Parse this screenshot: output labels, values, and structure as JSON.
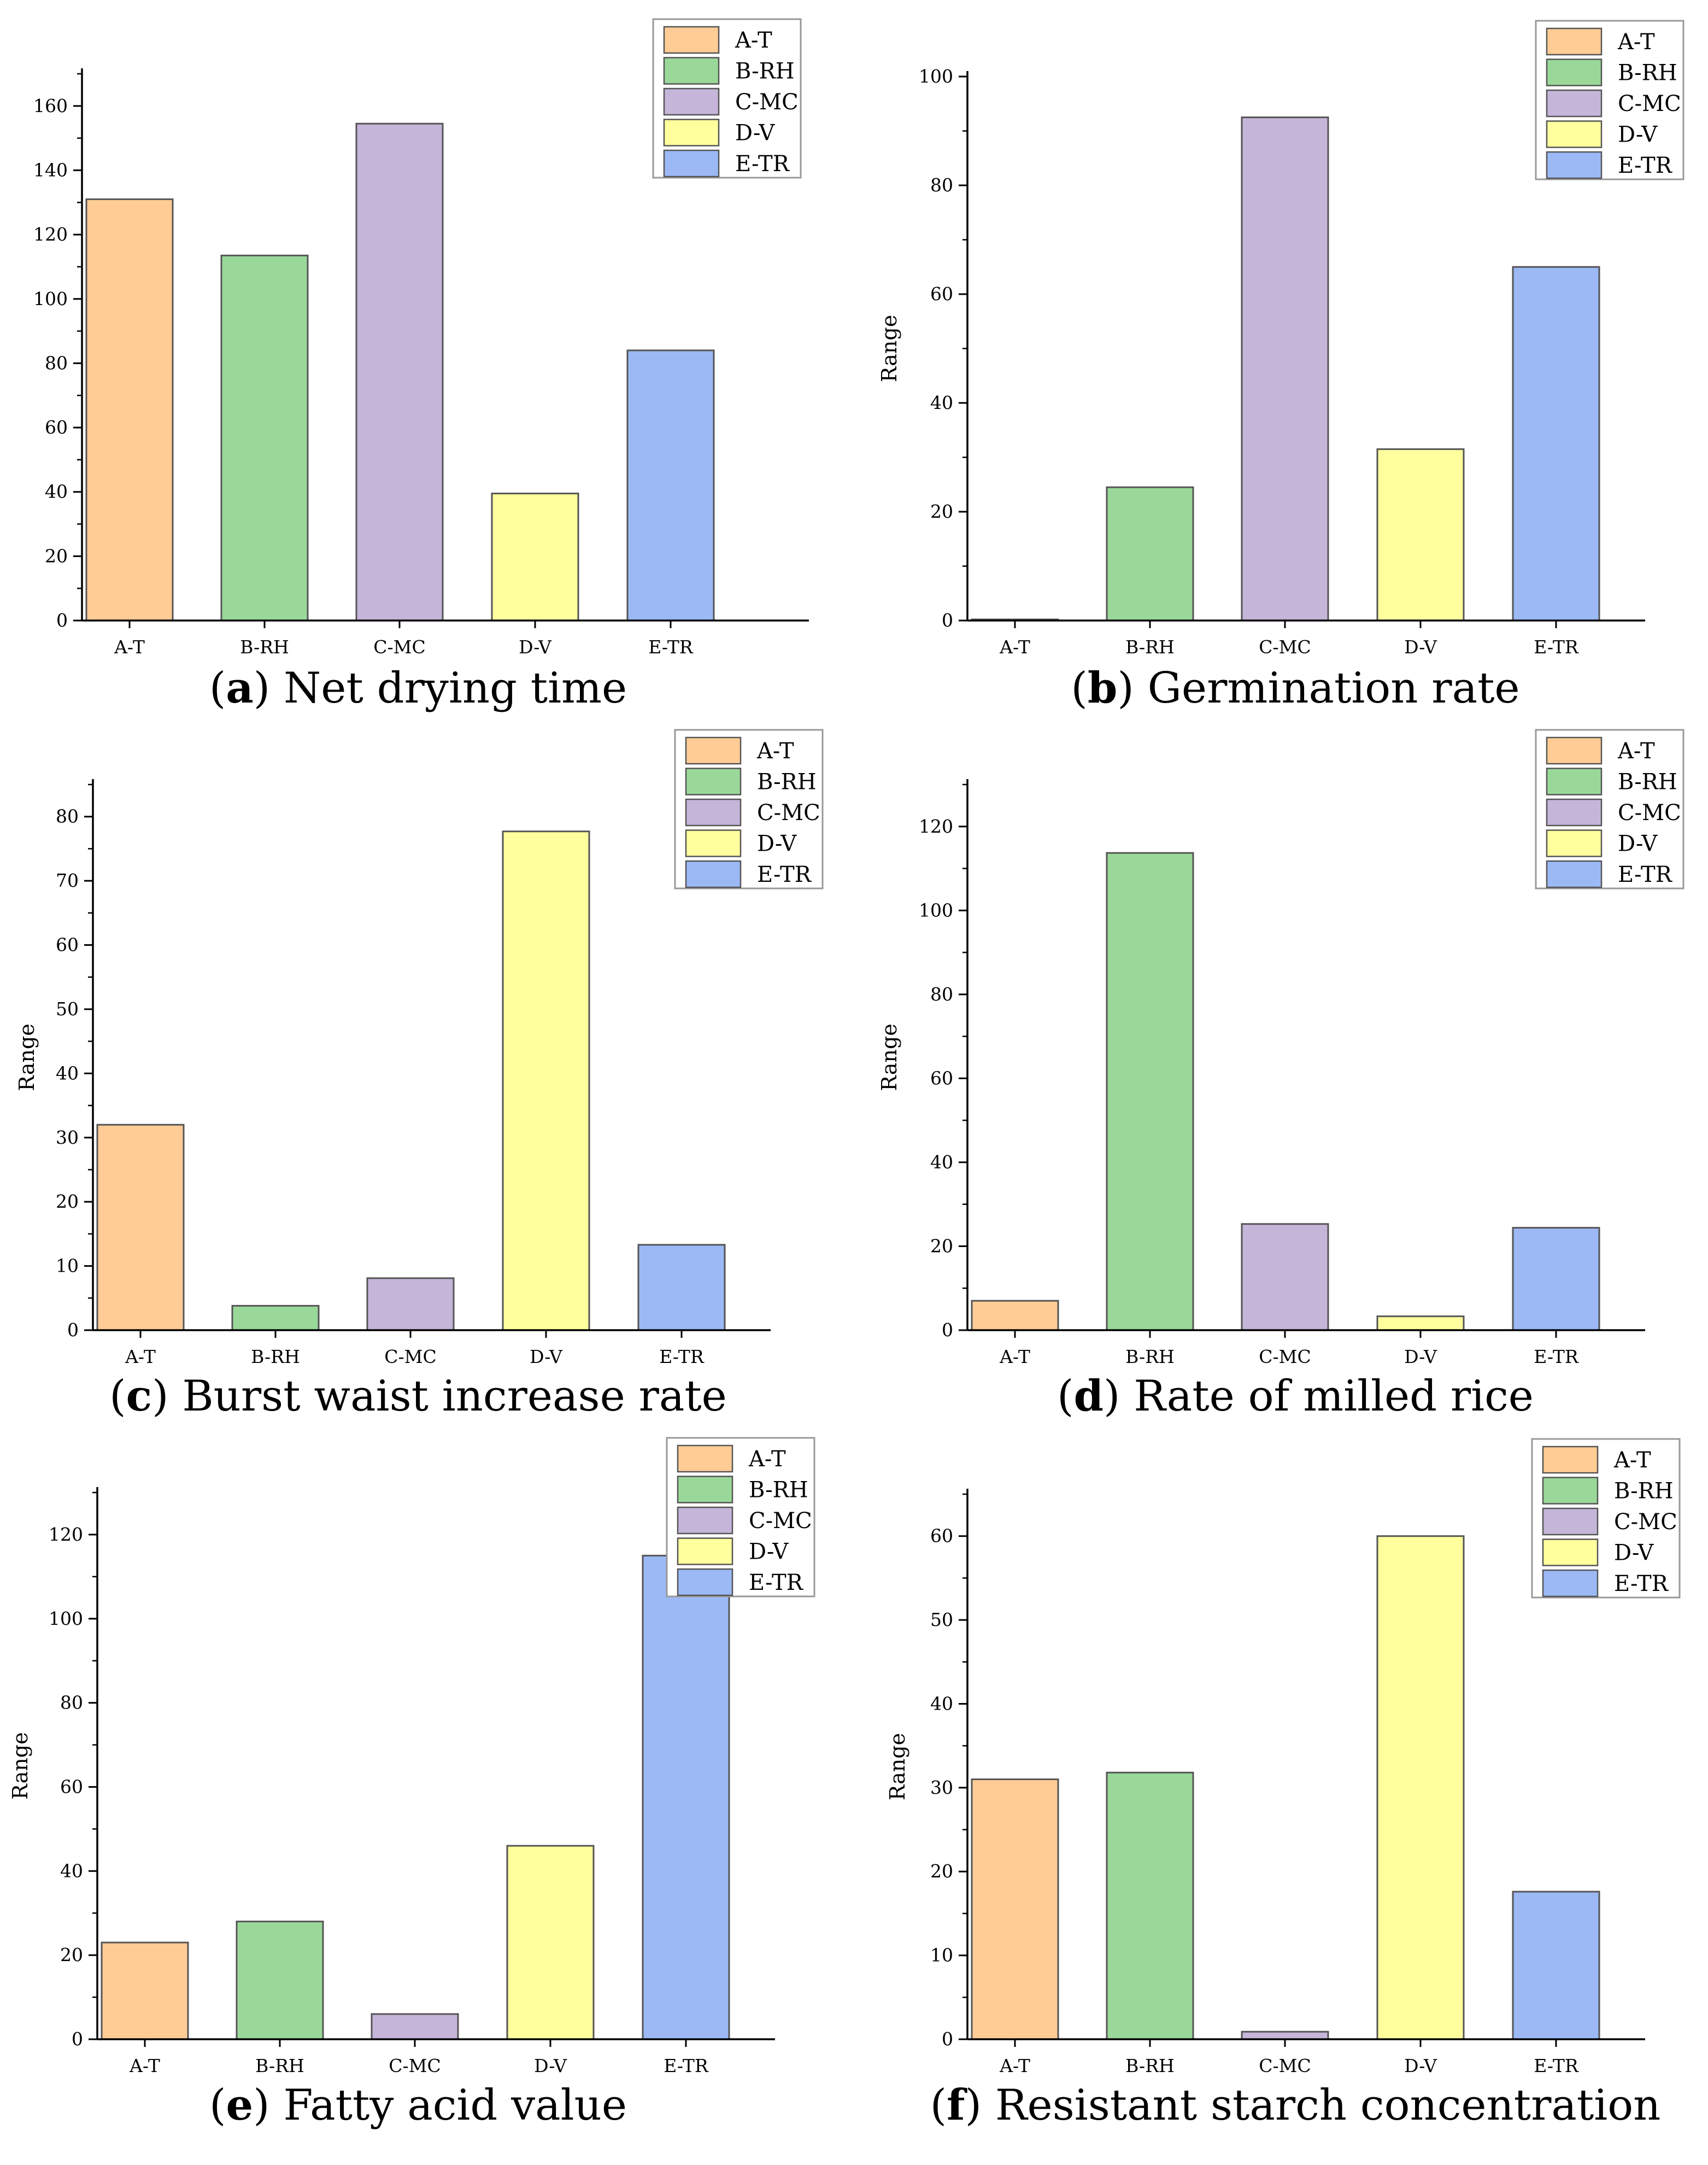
{
  "colors": {
    "A-T": "#FFCC96",
    "B-RH": "#9AD89A",
    "C-MC": "#C5B5D9",
    "D-V": "#FFFF9E",
    "E-TR": "#9CB9F6",
    "axis": "#000000",
    "bar_border": "#555555"
  },
  "chart_data": [
    {
      "panel_letter": "a",
      "caption": "Net drying time",
      "type": "bar",
      "ylabel": "",
      "ylim": [
        0,
        170
      ],
      "yticks": [
        0,
        20,
        40,
        60,
        80,
        100,
        120,
        140,
        160
      ],
      "categories": [
        "A-T",
        "B-RH",
        "C-MC",
        "D-V",
        "E-TR"
      ],
      "values": [
        131,
        113.5,
        154.5,
        39.5,
        84
      ],
      "legend": [
        "A-T",
        "B-RH",
        "C-MC",
        "D-V",
        "E-TR"
      ],
      "legend_position": "top-right"
    },
    {
      "panel_letter": "b",
      "caption": "Germination rate",
      "type": "bar",
      "ylabel": "Range",
      "ylim": [
        0,
        100
      ],
      "yticks": [
        0,
        20,
        40,
        60,
        80,
        100
      ],
      "categories": [
        "A-T",
        "B-RH",
        "C-MC",
        "D-V",
        "E-TR"
      ],
      "values": [
        0.2,
        24.5,
        92.5,
        31.5,
        65
      ],
      "legend": [
        "A-T",
        "B-RH",
        "C-MC",
        "D-V",
        "E-TR"
      ],
      "legend_position": "top-right"
    },
    {
      "panel_letter": "c",
      "caption": "Burst waist increase rate",
      "type": "bar",
      "ylabel": "Range",
      "ylim": [
        0,
        85
      ],
      "yticks": [
        0,
        10,
        20,
        30,
        40,
        50,
        60,
        70,
        80
      ],
      "categories": [
        "A-T",
        "B-RH",
        "C-MC",
        "D-V",
        "E-TR"
      ],
      "values": [
        32,
        3.8,
        8.1,
        77.7,
        13.3
      ],
      "legend": [
        "A-T",
        "B-RH",
        "C-MC",
        "D-V",
        "E-TR"
      ],
      "legend_position": "top-right"
    },
    {
      "panel_letter": "d",
      "caption": "Rate of milled rice",
      "type": "bar",
      "ylabel": "Range",
      "ylim": [
        0,
        130
      ],
      "yticks": [
        0,
        20,
        40,
        60,
        80,
        100,
        120
      ],
      "categories": [
        "A-T",
        "B-RH",
        "C-MC",
        "D-V",
        "E-TR"
      ],
      "values": [
        7,
        113.7,
        25.3,
        3.3,
        24.4
      ],
      "legend": [
        "A-T",
        "B-RH",
        "C-MC",
        "D-V",
        "E-TR"
      ],
      "legend_position": "top-right"
    },
    {
      "panel_letter": "e",
      "caption": "Fatty acid value",
      "type": "bar",
      "ylabel": "Range",
      "ylim": [
        0,
        130
      ],
      "yticks": [
        0,
        20,
        40,
        60,
        80,
        100,
        120
      ],
      "categories": [
        "A-T",
        "B-RH",
        "C-MC",
        "D-V",
        "E-TR"
      ],
      "values": [
        23,
        28,
        6,
        46,
        115
      ],
      "legend": [
        "A-T",
        "B-RH",
        "C-MC",
        "D-V",
        "E-TR"
      ],
      "legend_position": "top-right"
    },
    {
      "panel_letter": "f",
      "caption": "Resistant starch concentration",
      "type": "bar",
      "ylabel": "Range",
      "ylim": [
        0,
        65
      ],
      "yticks": [
        0,
        10,
        20,
        30,
        40,
        50,
        60
      ],
      "categories": [
        "A-T",
        "B-RH",
        "C-MC",
        "D-V",
        "E-TR"
      ],
      "values": [
        31,
        31.8,
        0.9,
        60,
        17.6
      ],
      "legend": [
        "A-T",
        "B-RH",
        "C-MC",
        "D-V",
        "E-TR"
      ],
      "legend_position": "top-right"
    }
  ]
}
